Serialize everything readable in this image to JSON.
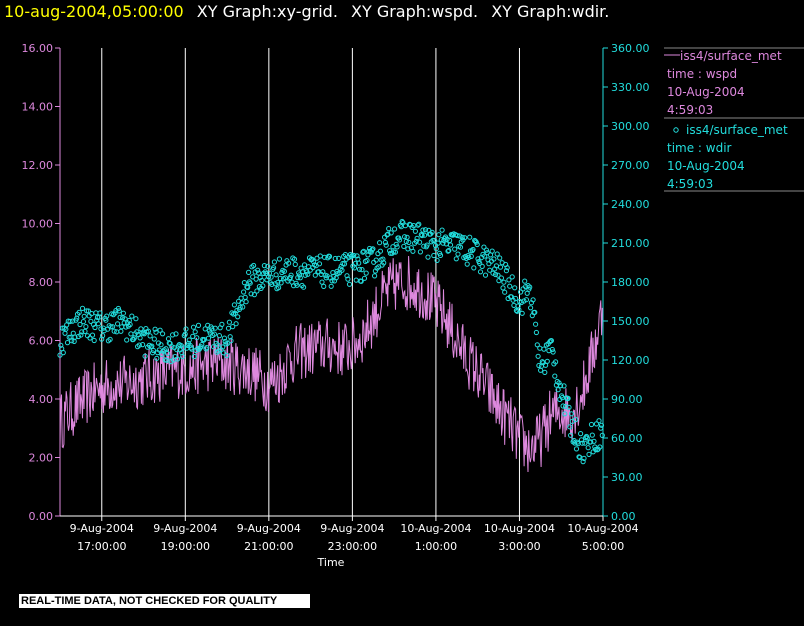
{
  "header": {
    "timestamp": "10-aug-2004,05:00:00",
    "titles": [
      "XY Graph:xy-grid.",
      "XY Graph:wspd.",
      "XY Graph:wdir."
    ]
  },
  "colors": {
    "background": "#000000",
    "wspd": "#dd88dd",
    "wdir": "#22dddd",
    "grid": "#ffffff",
    "timestamp": "#ffff00"
  },
  "footer": {
    "quality_note": "REAL-TIME DATA, NOT CHECKED FOR QUALITY"
  },
  "chart_data": {
    "type": "line",
    "xlabel": "Time",
    "x_range": [
      "9-Aug-2004 16:00:00",
      "10-Aug-2004 05:00:00"
    ],
    "x_ticks": [
      {
        "date": "9-Aug-2004",
        "time": "17:00:00"
      },
      {
        "date": "9-Aug-2004",
        "time": "19:00:00"
      },
      {
        "date": "9-Aug-2004",
        "time": "21:00:00"
      },
      {
        "date": "9-Aug-2004",
        "time": "23:00:00"
      },
      {
        "date": "10-Aug-2004",
        "time": "1:00:00"
      },
      {
        "date": "10-Aug-2004",
        "time": "3:00:00"
      },
      {
        "date": "10-Aug-2004",
        "time": "5:00:00"
      }
    ],
    "y_left": {
      "ylim": [
        0,
        16
      ],
      "ticks": [
        "0.00",
        "2.00",
        "4.00",
        "6.00",
        "8.00",
        "10.00",
        "12.00",
        "14.00",
        "16.00"
      ]
    },
    "y_right": {
      "ylim": [
        0,
        360
      ],
      "ticks": [
        "0.00",
        "30.00",
        "60.00",
        "90.00",
        "120.00",
        "150.00",
        "180.00",
        "210.00",
        "240.00",
        "270.00",
        "300.00",
        "330.00",
        "360.00"
      ]
    },
    "grid": "vertical lines at x ticks",
    "legend_position": "right",
    "series": [
      {
        "name": "iss4/surface_met",
        "legend_lines": [
          "iss4/surface_met",
          "time : wspd",
          "10-Aug-2004",
          "4:59:03"
        ],
        "style": "line",
        "axis": "left",
        "points": [
          [
            "9-Aug-2004 16:00:00",
            3.2
          ],
          [
            "9-Aug-2004 16:15:00",
            3.6
          ],
          [
            "9-Aug-2004 16:30:00",
            3.9
          ],
          [
            "9-Aug-2004 16:45:00",
            4.2
          ],
          [
            "9-Aug-2004 17:00:00",
            4.4
          ],
          [
            "9-Aug-2004 17:15:00",
            4.5
          ],
          [
            "9-Aug-2004 17:30:00",
            4.5
          ],
          [
            "9-Aug-2004 17:45:00",
            4.6
          ],
          [
            "9-Aug-2004 18:00:00",
            4.7
          ],
          [
            "9-Aug-2004 18:15:00",
            4.8
          ],
          [
            "9-Aug-2004 18:30:00",
            4.9
          ],
          [
            "9-Aug-2004 18:45:00",
            5.0
          ],
          [
            "9-Aug-2004 19:00:00",
            5.0
          ],
          [
            "9-Aug-2004 19:15:00",
            5.1
          ],
          [
            "9-Aug-2004 19:30:00",
            5.2
          ],
          [
            "9-Aug-2004 19:45:00",
            5.3
          ],
          [
            "9-Aug-2004 20:00:00",
            5.2
          ],
          [
            "9-Aug-2004 20:15:00",
            5.1
          ],
          [
            "9-Aug-2004 20:30:00",
            5.0
          ],
          [
            "9-Aug-2004 20:45:00",
            4.8
          ],
          [
            "9-Aug-2004 21:00:00",
            4.5
          ],
          [
            "9-Aug-2004 21:15:00",
            4.8
          ],
          [
            "9-Aug-2004 21:30:00",
            5.4
          ],
          [
            "9-Aug-2004 21:45:00",
            5.6
          ],
          [
            "9-Aug-2004 22:00:00",
            5.7
          ],
          [
            "9-Aug-2004 22:15:00",
            5.8
          ],
          [
            "9-Aug-2004 22:30:00",
            5.8
          ],
          [
            "9-Aug-2004 22:45:00",
            5.7
          ],
          [
            "9-Aug-2004 23:00:00",
            5.8
          ],
          [
            "9-Aug-2004 23:15:00",
            6.2
          ],
          [
            "9-Aug-2004 23:30:00",
            6.8
          ],
          [
            "9-Aug-2004 23:45:00",
            7.5
          ],
          [
            "10-Aug-2004 00:00:00",
            7.9
          ],
          [
            "10-Aug-2004 00:15:00",
            8.0
          ],
          [
            "10-Aug-2004 00:30:00",
            7.9
          ],
          [
            "10-Aug-2004 00:45:00",
            7.6
          ],
          [
            "10-Aug-2004 01:00:00",
            7.2
          ],
          [
            "10-Aug-2004 01:15:00",
            6.7
          ],
          [
            "10-Aug-2004 01:30:00",
            6.0
          ],
          [
            "10-Aug-2004 01:45:00",
            5.4
          ],
          [
            "10-Aug-2004 02:00:00",
            4.9
          ],
          [
            "10-Aug-2004 02:15:00",
            4.3
          ],
          [
            "10-Aug-2004 02:30:00",
            3.7
          ],
          [
            "10-Aug-2004 02:45:00",
            3.2
          ],
          [
            "10-Aug-2004 03:00:00",
            2.6
          ],
          [
            "10-Aug-2004 03:15:00",
            2.3
          ],
          [
            "10-Aug-2004 03:30:00",
            2.6
          ],
          [
            "10-Aug-2004 03:45:00",
            3.4
          ],
          [
            "10-Aug-2004 04:00:00",
            3.6
          ],
          [
            "10-Aug-2004 04:15:00",
            3.5
          ],
          [
            "10-Aug-2004 04:30:00",
            4.2
          ],
          [
            "10-Aug-2004 04:45:00",
            5.5
          ],
          [
            "10-Aug-2004 04:59:03",
            7.0
          ]
        ],
        "noise_amplitude": 1.0
      },
      {
        "name": "iss4/surface_met",
        "legend_lines": [
          "iss4/surface_met",
          "time : wdir",
          "10-Aug-2004",
          "4:59:03"
        ],
        "style": "scatter",
        "axis": "right",
        "points": [
          [
            "9-Aug-2004 16:00:00",
            135
          ],
          [
            "9-Aug-2004 16:30:00",
            150
          ],
          [
            "9-Aug-2004 17:00:00",
            145
          ],
          [
            "9-Aug-2004 17:30:00",
            150
          ],
          [
            "9-Aug-2004 18:00:00",
            135
          ],
          [
            "9-Aug-2004 18:30:00",
            130
          ],
          [
            "9-Aug-2004 19:00:00",
            132
          ],
          [
            "9-Aug-2004 19:30:00",
            138
          ],
          [
            "9-Aug-2004 20:00:00",
            135
          ],
          [
            "9-Aug-2004 20:30:00",
            180
          ],
          [
            "9-Aug-2004 21:00:00",
            185
          ],
          [
            "9-Aug-2004 21:30:00",
            188
          ],
          [
            "9-Aug-2004 22:00:00",
            188
          ],
          [
            "9-Aug-2004 22:30:00",
            188
          ],
          [
            "9-Aug-2004 23:00:00",
            190
          ],
          [
            "9-Aug-2004 23:30:00",
            195
          ],
          [
            "10-Aug-2004 00:00:00",
            215
          ],
          [
            "10-Aug-2004 00:30:00",
            215
          ],
          [
            "10-Aug-2004 01:00:00",
            208
          ],
          [
            "10-Aug-2004 01:30:00",
            208
          ],
          [
            "10-Aug-2004 02:00:00",
            200
          ],
          [
            "10-Aug-2004 02:30:00",
            190
          ],
          [
            "10-Aug-2004 03:00:00",
            165
          ],
          [
            "10-Aug-2004 03:15:00",
            175
          ],
          [
            "10-Aug-2004 03:30:00",
            115
          ],
          [
            "10-Aug-2004 03:45:00",
            130
          ],
          [
            "10-Aug-2004 04:00:00",
            95
          ],
          [
            "10-Aug-2004 04:15:00",
            70
          ],
          [
            "10-Aug-2004 04:30:00",
            52
          ],
          [
            "10-Aug-2004 04:45:00",
            60
          ],
          [
            "10-Aug-2004 04:59:03",
            65
          ]
        ],
        "noise_amplitude": 12
      }
    ]
  }
}
